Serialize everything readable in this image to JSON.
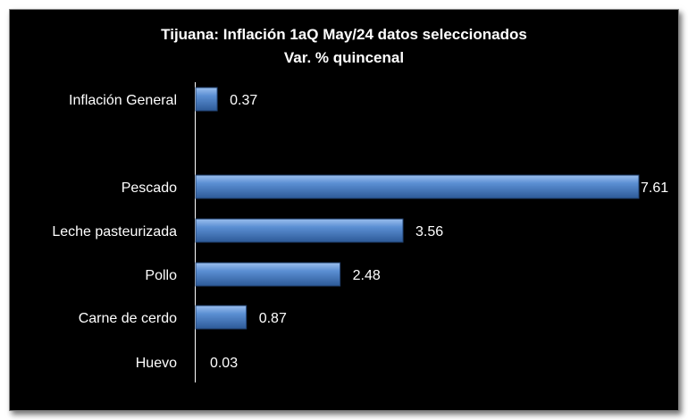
{
  "chart_data": {
    "type": "bar",
    "orientation": "horizontal",
    "title": "Tijuana: Inflación 1aQ May/24 datos seleccionados",
    "subtitle": "Var. % quincenal",
    "categories": [
      "Inflación General",
      "",
      "Pescado",
      "Leche pasteurizada",
      "Pollo",
      "Carne de cerdo",
      "Huevo"
    ],
    "values": [
      0.37,
      null,
      7.61,
      3.56,
      2.48,
      0.87,
      0.03
    ],
    "data_labels": [
      "0.37",
      "",
      "7.61",
      "3.56",
      "2.48",
      "0.87",
      "0.03"
    ],
    "xlim": [
      0,
      7.61
    ],
    "grid": false,
    "legend": "none",
    "colors": {
      "background": "#000000",
      "bar": "#4a7ec4",
      "bar_light": "#8fb6e8",
      "bar_dark": "#2b5590",
      "text": "#ffffff",
      "axis": "#ffffff",
      "frame_border": "#7f7f7f"
    }
  }
}
